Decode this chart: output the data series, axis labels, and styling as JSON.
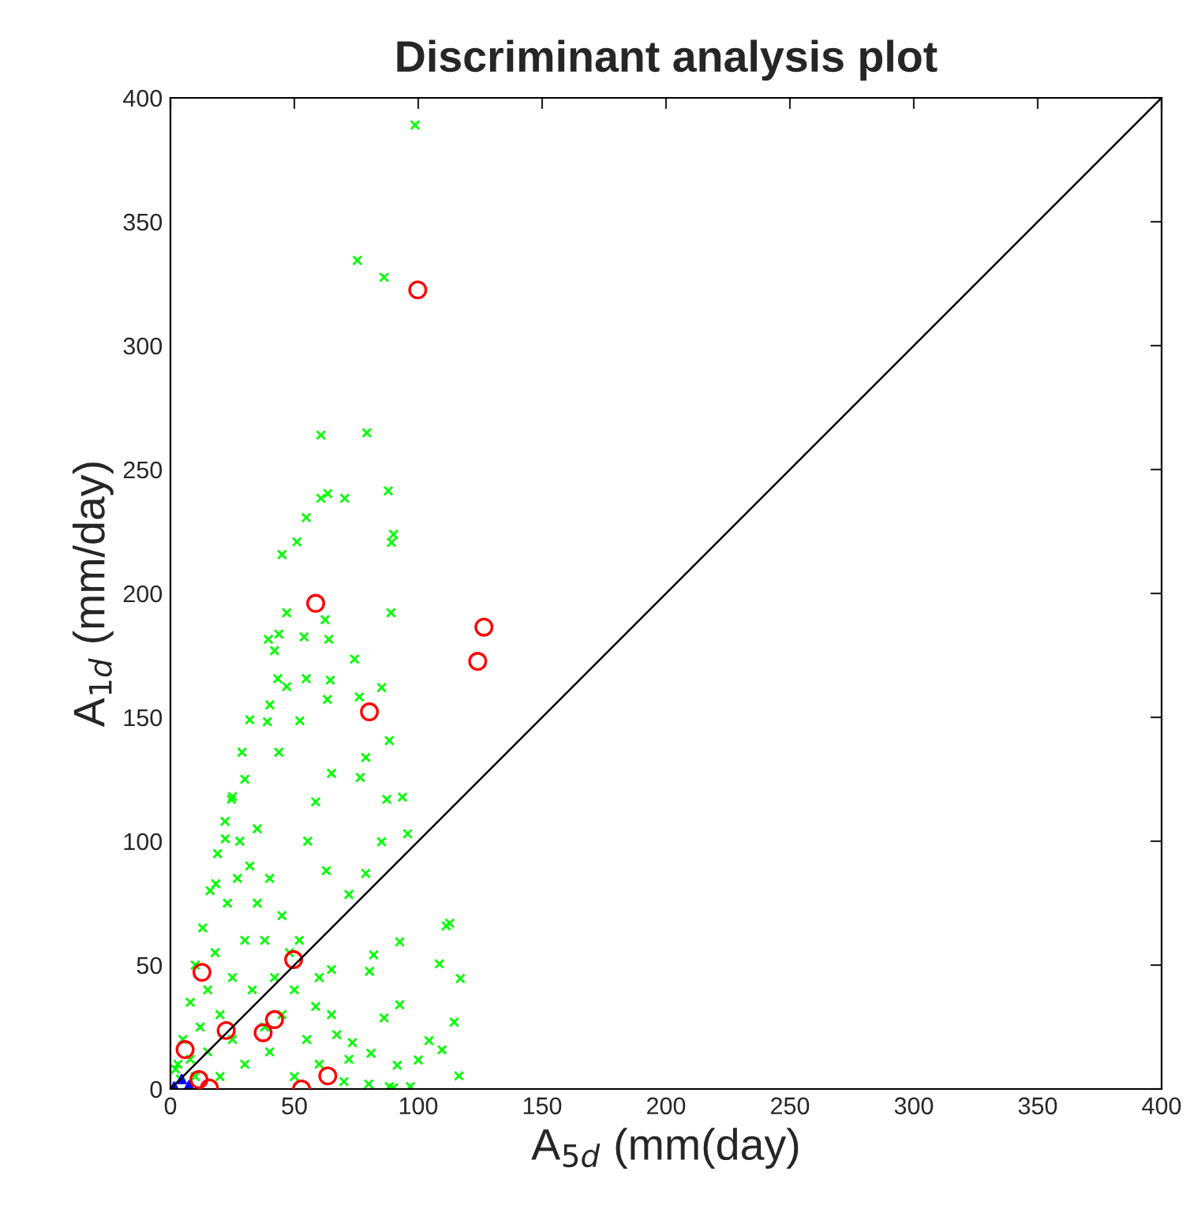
{
  "chart_data": {
    "type": "scatter",
    "title": "Discriminant analysis plot",
    "xlabel": "A$_{5d}$ (mm(day)",
    "ylabel": "A$_{1d}$ (mm/day)",
    "xlim": [
      0,
      400
    ],
    "ylim": [
      0,
      400
    ],
    "xticks": [
      0,
      50,
      100,
      150,
      200,
      250,
      300,
      350,
      400
    ],
    "yticks": [
      0,
      50,
      100,
      150,
      200,
      250,
      300,
      350,
      400
    ],
    "grid": false,
    "legend": false,
    "series": [
      {
        "marker": "cross",
        "color": "#00ff00",
        "x": [
          98.7,
          75.4,
          86.2,
          60.7,
          79.2,
          87.9,
          60.7,
          63.5,
          70.3,
          54.8,
          90,
          89.2,
          51,
          45,
          46.9,
          89,
          62.4,
          43.7,
          39.5,
          53.9,
          63.9,
          42,
          74.3,
          54.8,
          43.3,
          46.9,
          64.5,
          85.2,
          76.2,
          63.3,
          40.1,
          32,
          39.1,
          52.2,
          88.3,
          78.8,
          28.9,
          43.7,
          65,
          76.6,
          93.6,
          87.3,
          24.6,
          58.6,
          95.7,
          85.2,
          22.1,
          55.4,
          62.9,
          78.8,
          72,
          18.3,
          111.3,
          112.7,
          117,
          92.5,
          82,
          108.5,
          80.3,
          65,
          92.5,
          86.2,
          114.5,
          104.3,
          109.6,
          116.4,
          100,
          91.5,
          96.8,
          88.3,
          80.9,
          73.4,
          67.1,
          58.6,
          3,
          5,
          8,
          10,
          13,
          16,
          19,
          22,
          25,
          30,
          28,
          32,
          35,
          30,
          25,
          20,
          15,
          10,
          20,
          30,
          40,
          45,
          42,
          38,
          40,
          35,
          45,
          50,
          55,
          60,
          70,
          80,
          90,
          50,
          12,
          18,
          23,
          27,
          33,
          38,
          48,
          52,
          60,
          65,
          72,
          8,
          4,
          2,
          15,
          25
        ],
        "values": [
          389,
          334.4,
          327.6,
          263.9,
          264.8,
          241.4,
          238.4,
          240.3,
          238.4,
          230.6,
          223.8,
          220.6,
          220.8,
          215.7,
          192.2,
          192.2,
          189.4,
          183.6,
          181.5,
          182.5,
          181.5,
          176.9,
          173.5,
          165.6,
          165.6,
          162.4,
          165,
          162,
          158.2,
          157.2,
          155,
          149,
          148.2,
          148.6,
          140.6,
          133.8,
          135.9,
          135.9,
          127.4,
          125.7,
          117.8,
          116.9,
          116.9,
          115.9,
          103,
          99.8,
          101,
          100,
          88.1,
          87,
          78.5,
          82.8,
          65.8,
          66.9,
          44.6,
          59.4,
          54.1,
          50.5,
          47.5,
          48.2,
          34,
          28.7,
          27,
          19.5,
          15.8,
          5.3,
          11.7,
          9.6,
          1,
          1,
          14.4,
          18.7,
          21.9,
          33.3,
          10,
          20,
          35,
          50,
          65,
          80,
          95,
          108,
          118,
          125,
          100,
          90,
          75,
          60,
          45,
          30,
          15,
          5,
          5,
          10,
          15,
          30,
          45,
          60,
          85,
          105,
          70,
          40,
          20,
          10,
          3,
          2,
          0.5,
          5,
          25,
          55,
          75,
          85,
          40,
          25,
          55,
          60,
          45,
          30,
          12,
          12,
          4,
          8,
          40,
          20
        ]
      },
      {
        "marker": "circle",
        "color": "#ff0000",
        "x": [
          99.8,
          58.6,
          126.5,
          124,
          80.3,
          49.7,
          12.7,
          22.5,
          37.4,
          42,
          5.9,
          63.5,
          52.9,
          15.7,
          11.5
        ],
        "values": [
          322.5,
          196,
          186.4,
          172.6,
          152.2,
          52.2,
          47.1,
          23.6,
          22.7,
          28,
          15.9,
          5.3,
          0,
          0.4,
          3.8
        ]
      },
      {
        "marker": "triangle",
        "color": "#0000ff",
        "x": [
          1.5,
          4.5,
          7.5
        ],
        "values": [
          1,
          4,
          1.5
        ]
      },
      {
        "type": "line",
        "color": "#000000",
        "x": [
          0,
          400
        ],
        "values": [
          0,
          400
        ]
      }
    ]
  }
}
